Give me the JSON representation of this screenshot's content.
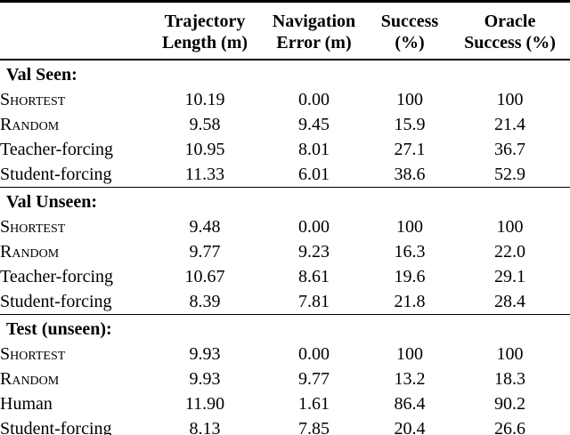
{
  "header": {
    "columns": [
      {
        "line1": "Trajectory",
        "line2": "Length (m)"
      },
      {
        "line1": "Navigation",
        "line2": "Error (m)"
      },
      {
        "line1": "Success",
        "line2": "(%)"
      },
      {
        "line1": "Oracle",
        "line2": "Success (%)"
      }
    ]
  },
  "sections": [
    {
      "id": "val-seen",
      "title": "Val Seen:",
      "rows": [
        {
          "label": "Shortest",
          "smallcaps": true,
          "values": [
            "10.19",
            "0.00",
            "100",
            "100"
          ]
        },
        {
          "label": "Random",
          "smallcaps": true,
          "values": [
            "9.58",
            "9.45",
            "15.9",
            "21.4"
          ]
        },
        {
          "label": "Teacher-forcing",
          "smallcaps": false,
          "values": [
            "10.95",
            "8.01",
            "27.1",
            "36.7"
          ]
        },
        {
          "label": "Student-forcing",
          "smallcaps": false,
          "values": [
            "11.33",
            "6.01",
            "38.6",
            "52.9"
          ]
        }
      ]
    },
    {
      "id": "val-unseen",
      "title": "Val Unseen:",
      "rows": [
        {
          "label": "Shortest",
          "smallcaps": true,
          "values": [
            "9.48",
            "0.00",
            "100",
            "100"
          ]
        },
        {
          "label": "Random",
          "smallcaps": true,
          "values": [
            "9.77",
            "9.23",
            "16.3",
            "22.0"
          ]
        },
        {
          "label": "Teacher-forcing",
          "smallcaps": false,
          "values": [
            "10.67",
            "8.61",
            "19.6",
            "29.1"
          ]
        },
        {
          "label": "Student-forcing",
          "smallcaps": false,
          "values": [
            "8.39",
            "7.81",
            "21.8",
            "28.4"
          ]
        }
      ]
    },
    {
      "id": "test-unseen",
      "title": "Test (unseen):",
      "rows": [
        {
          "label": "Shortest",
          "smallcaps": true,
          "values": [
            "9.93",
            "0.00",
            "100",
            "100"
          ]
        },
        {
          "label": "Random",
          "smallcaps": true,
          "values": [
            "9.93",
            "9.77",
            "13.2",
            "18.3"
          ]
        },
        {
          "label": "Human",
          "smallcaps": false,
          "values": [
            "11.90",
            "1.61",
            "86.4",
            "90.2"
          ]
        },
        {
          "label": "Student-forcing",
          "smallcaps": false,
          "values": [
            "8.13",
            "7.85",
            "20.4",
            "26.6"
          ]
        }
      ]
    }
  ],
  "colors": {
    "text": "#000000",
    "background": "#ffffff",
    "rule": "#000000"
  }
}
